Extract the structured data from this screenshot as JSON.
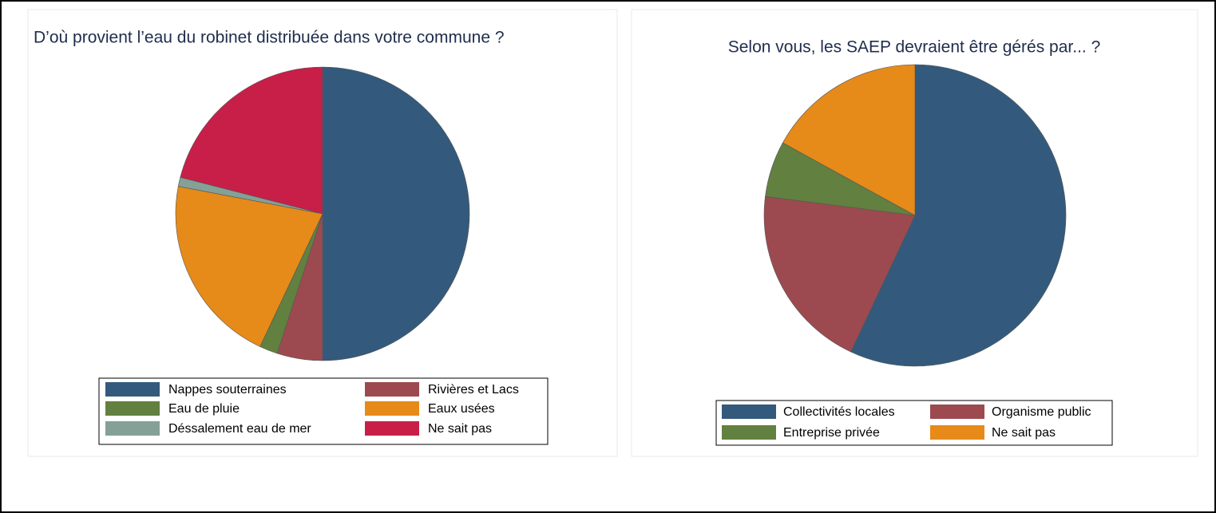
{
  "chart_data": [
    {
      "type": "pie",
      "title": "D’où provient l’eau du robinet distribuée dans votre commune ?",
      "categories": [
        "Nappes souterraines",
        "Rivières et Lacs",
        "Eau de pluie",
        "Eaux usées",
        "Déssalement eau de mer",
        "Ne sait pas"
      ],
      "values": [
        50,
        5,
        2,
        21,
        1,
        21
      ],
      "colors": [
        "#335a7c",
        "#9c4a50",
        "#62803f",
        "#e68a1a",
        "#85a097",
        "#c71f48"
      ]
    },
    {
      "type": "pie",
      "title": "Selon vous, les SAEP devraient être gérés par... ?",
      "categories": [
        "Collectivités locales",
        "Organisme public",
        "Entreprise privée",
        "Ne sait pas"
      ],
      "values": [
        57,
        20,
        6,
        17
      ],
      "colors": [
        "#335a7c",
        "#9c4a50",
        "#62803f",
        "#e68a1a"
      ]
    }
  ]
}
